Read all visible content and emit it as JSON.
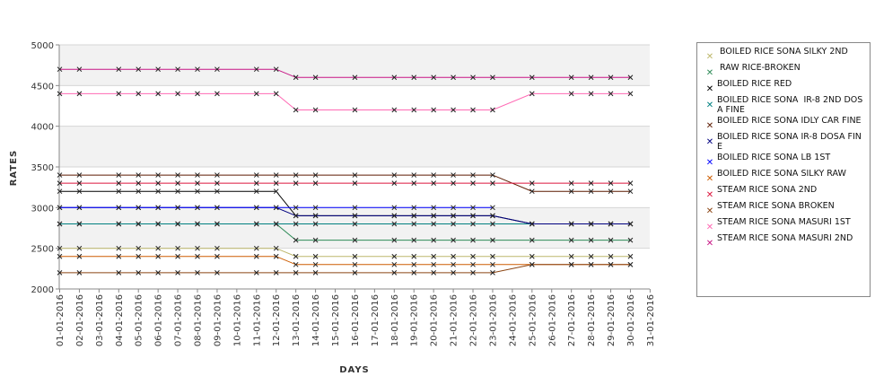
{
  "chart_data": {
    "type": "line",
    "xlabel": "DAYS",
    "ylabel": "RATES",
    "ylim": [
      2000,
      5000
    ],
    "yticks": [
      "2000",
      "2500",
      "3000",
      "3500",
      "4000",
      "4500",
      "5000"
    ],
    "grid": "alternating horizontal bands",
    "legend_position": "right",
    "categories": [
      "01-01-2016",
      "02-01-2016",
      "03-01-2016",
      "04-01-2016",
      "05-01-2016",
      "06-01-2016",
      "07-01-2016",
      "08-01-2016",
      "09-01-2016",
      "10-01-2016",
      "11-01-2016",
      "12-01-2016",
      "13-01-2016",
      "14-01-2016",
      "15-01-2016",
      "16-01-2016",
      "17-01-2016",
      "18-01-2016",
      "19-01-2016",
      "20-01-2016",
      "21-01-2016",
      "22-01-2016",
      "23-01-2016",
      "24-01-2016",
      "25-01-2016",
      "26-01-2016",
      "27-01-2016",
      "28-01-2016",
      "29-01-2016",
      "30-01-2016",
      "31-01-2016"
    ],
    "series": [
      {
        "name": " BOILED RICE SONA SILKY 2ND",
        "color": "#bdb76b",
        "values": [
          2500,
          2500,
          null,
          2500,
          2500,
          2500,
          2500,
          2500,
          2500,
          null,
          2500,
          2500,
          2400,
          2400,
          null,
          2400,
          null,
          2400,
          2400,
          2400,
          2400,
          2400,
          2400,
          null,
          2400,
          null,
          2400,
          2400,
          2400,
          2400,
          null
        ]
      },
      {
        "name": " RAW RICE-BROKEN",
        "color": "#2e8b57",
        "values": [
          2800,
          2800,
          null,
          2800,
          2800,
          2800,
          2800,
          2800,
          2800,
          null,
          2800,
          2800,
          2600,
          2600,
          null,
          2600,
          null,
          2600,
          2600,
          2600,
          2600,
          2600,
          2600,
          null,
          2600,
          null,
          2600,
          2600,
          2600,
          2600,
          null
        ]
      },
      {
        "name": "BOILED RICE RED",
        "color": "#000000",
        "values": [
          3200,
          3200,
          null,
          3200,
          3200,
          3200,
          3200,
          3200,
          3200,
          null,
          3200,
          3200,
          2900,
          2900,
          null,
          2900,
          null,
          2900,
          2900,
          2900,
          2900,
          2900,
          2900,
          null,
          2800,
          null,
          2800,
          2800,
          2800,
          2800,
          null
        ]
      },
      {
        "name": "BOILED RICE SONA  IR-8 2ND DOSA FINE",
        "color": "#008080",
        "values": [
          2800,
          2800,
          null,
          2800,
          2800,
          2800,
          2800,
          2800,
          2800,
          null,
          2800,
          2800,
          2800,
          2800,
          null,
          2800,
          null,
          2800,
          2800,
          2800,
          2800,
          2800,
          2800,
          null,
          2800,
          null,
          2800,
          2800,
          2800,
          2800,
          null
        ]
      },
      {
        "name": "BOILED RICE SONA IDLY CAR FINE",
        "color": "#5c1a00",
        "values": [
          3400,
          3400,
          null,
          3400,
          3400,
          3400,
          3400,
          3400,
          3400,
          null,
          3400,
          3400,
          3400,
          3400,
          null,
          3400,
          null,
          3400,
          3400,
          3400,
          3400,
          3400,
          3400,
          null,
          3200,
          null,
          3200,
          3200,
          3200,
          3200,
          null
        ]
      },
      {
        "name": "BOILED RICE SONA IR-8 DOSA FINE",
        "color": "#000080",
        "values": [
          3000,
          3000,
          null,
          3000,
          3000,
          3000,
          3000,
          3000,
          3000,
          null,
          3000,
          3000,
          2900,
          2900,
          null,
          2900,
          null,
          2900,
          2900,
          2900,
          2900,
          2900,
          2900,
          null,
          2800,
          null,
          2800,
          2800,
          2800,
          2800,
          null
        ]
      },
      {
        "name": "BOILED RICE SONA LB 1ST",
        "color": "#0000ff",
        "values": [
          3000,
          3000,
          null,
          3000,
          3000,
          3000,
          3000,
          3000,
          3000,
          null,
          3000,
          3000,
          3000,
          3000,
          null,
          3000,
          null,
          3000,
          3000,
          3000,
          3000,
          3000,
          3000,
          null,
          null,
          null,
          null,
          null,
          null,
          null,
          null
        ]
      },
      {
        "name": "BOILED RICE SONA SILKY RAW",
        "color": "#cd5c00",
        "values": [
          2400,
          2400,
          null,
          2400,
          2400,
          2400,
          2400,
          2400,
          2400,
          null,
          2400,
          2400,
          2300,
          2300,
          null,
          2300,
          null,
          2300,
          2300,
          2300,
          2300,
          2300,
          2300,
          null,
          2300,
          null,
          2300,
          2300,
          2300,
          2300,
          null
        ]
      },
      {
        "name": "STEAM RICE SONA 2ND",
        "color": "#dc143c",
        "values": [
          3300,
          3300,
          null,
          3300,
          3300,
          3300,
          3300,
          3300,
          3300,
          null,
          3300,
          3300,
          3300,
          3300,
          null,
          3300,
          null,
          3300,
          3300,
          3300,
          3300,
          3300,
          3300,
          null,
          3300,
          null,
          3300,
          3300,
          3300,
          3300,
          null
        ]
      },
      {
        "name": "STEAM RICE SONA BROKEN",
        "color": "#8b4513",
        "values": [
          2200,
          2200,
          null,
          2200,
          2200,
          2200,
          2200,
          2200,
          2200,
          null,
          2200,
          2200,
          2200,
          2200,
          null,
          2200,
          null,
          2200,
          2200,
          2200,
          2200,
          2200,
          2200,
          null,
          2300,
          null,
          2300,
          2300,
          2300,
          2300,
          null
        ]
      },
      {
        "name": "STEAM RICE SONA MASURI 1ST",
        "color": "#ff69b4",
        "values": [
          4400,
          4400,
          null,
          4400,
          4400,
          4400,
          4400,
          4400,
          4400,
          null,
          4400,
          4400,
          4200,
          4200,
          null,
          4200,
          null,
          4200,
          4200,
          4200,
          4200,
          4200,
          4200,
          null,
          4400,
          null,
          4400,
          4400,
          4400,
          4400,
          null
        ]
      },
      {
        "name": "STEAM RICE SONA MASURI 2ND",
        "color": "#c71585",
        "values": [
          4700,
          4700,
          null,
          4700,
          4700,
          4700,
          4700,
          4700,
          4700,
          null,
          4700,
          4700,
          4600,
          4600,
          null,
          4600,
          null,
          4600,
          4600,
          4600,
          4600,
          4600,
          4600,
          null,
          4600,
          null,
          4600,
          4600,
          4600,
          4600,
          null
        ]
      }
    ]
  }
}
